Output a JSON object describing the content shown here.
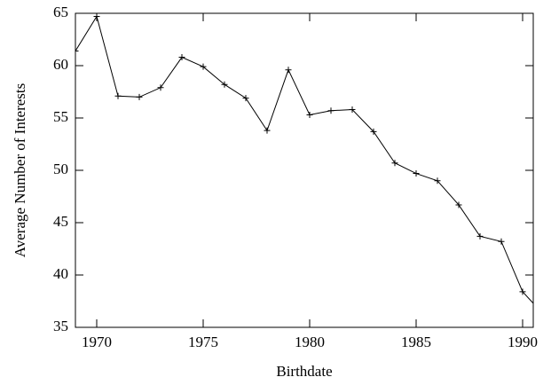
{
  "chart_data": {
    "type": "line",
    "xlabel": "Birthdate",
    "ylabel": "Average Number of Interests",
    "x": [
      1969,
      1970,
      1971,
      1972,
      1973,
      1974,
      1975,
      1976,
      1977,
      1978,
      1979,
      1980,
      1981,
      1982,
      1983,
      1984,
      1985,
      1986,
      1987,
      1988,
      1989,
      1990,
      1991
    ],
    "series": [
      {
        "name": "Average Number of Interests",
        "color": "#000000",
        "values": [
          61.4,
          64.7,
          57.1,
          57.0,
          57.9,
          60.8,
          59.9,
          58.2,
          56.9,
          53.8,
          59.6,
          55.3,
          55.7,
          55.8,
          53.7,
          50.7,
          49.7,
          49.0,
          46.7,
          43.7,
          43.2,
          38.4,
          36.2
        ]
      }
    ],
    "xlim": [
      1969,
      1990.5
    ],
    "ylim": [
      35,
      65
    ],
    "xticks": [
      1970,
      1975,
      1980,
      1985,
      1990
    ],
    "yticks": [
      35,
      40,
      45,
      50,
      55,
      60,
      65
    ]
  }
}
